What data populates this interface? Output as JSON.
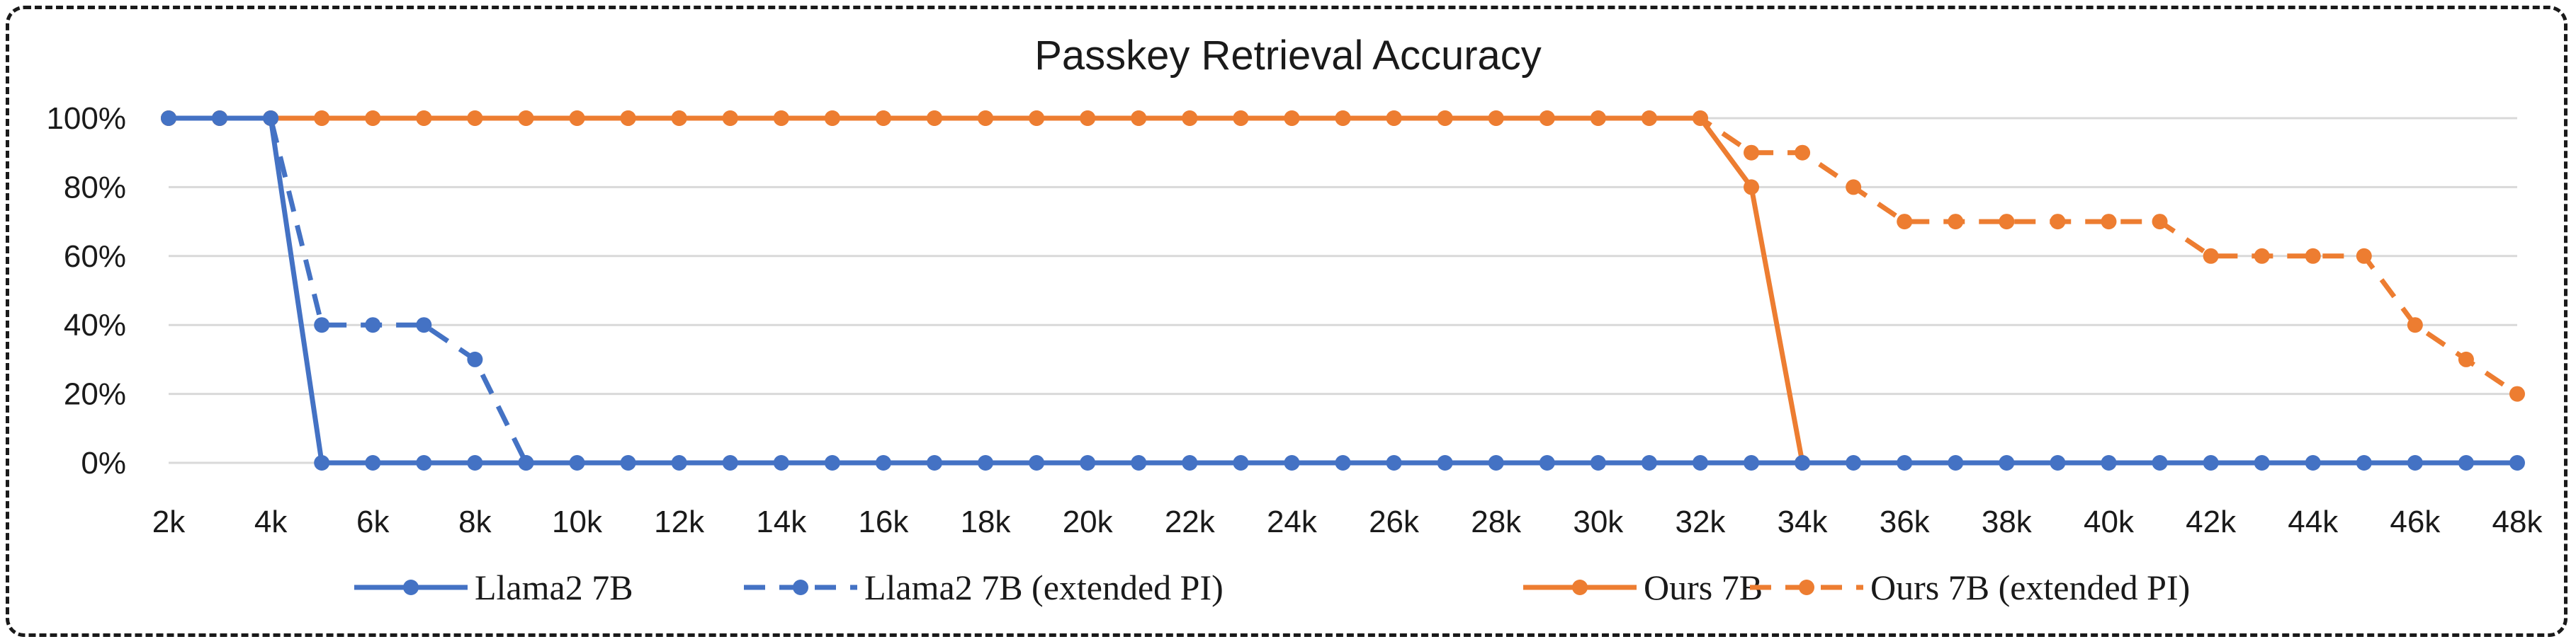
{
  "chart_data": {
    "type": "line",
    "title": "Passkey Retrieval Accuracy",
    "xlabel": "",
    "ylabel": "",
    "x": [
      2,
      3,
      4,
      5,
      6,
      7,
      8,
      9,
      10,
      11,
      12,
      13,
      14,
      15,
      16,
      17,
      18,
      19,
      20,
      21,
      22,
      23,
      24,
      25,
      26,
      27,
      28,
      29,
      30,
      31,
      32,
      33,
      34,
      35,
      36,
      37,
      38,
      39,
      40,
      41,
      42,
      43,
      44,
      45,
      46,
      47,
      48
    ],
    "x_unit_suffix": "k",
    "xlim": [
      2,
      48
    ],
    "x_tick_labels": [
      "2k",
      "4k",
      "6k",
      "8k",
      "10k",
      "12k",
      "14k",
      "16k",
      "18k",
      "20k",
      "22k",
      "24k",
      "26k",
      "28k",
      "30k",
      "32k",
      "34k",
      "36k",
      "38k",
      "40k",
      "42k",
      "44k",
      "46k",
      "48k"
    ],
    "ylim": [
      0,
      100
    ],
    "y_tick_labels": [
      "0%",
      "20%",
      "40%",
      "60%",
      "80%",
      "100%"
    ],
    "y_ticks": [
      0,
      20,
      40,
      60,
      80,
      100
    ],
    "grid": true,
    "legend_position": "bottom",
    "series": [
      {
        "name": "Llama2 7B",
        "color": "#4472c4",
        "dash": false,
        "values": [
          100,
          100,
          100,
          0,
          0,
          0,
          0,
          0,
          0,
          0,
          0,
          0,
          0,
          0,
          0,
          0,
          0,
          0,
          0,
          0,
          0,
          0,
          0,
          0,
          0,
          0,
          0,
          0,
          0,
          0,
          0,
          0,
          0,
          0,
          0,
          0,
          0,
          0,
          0,
          0,
          0,
          0,
          0,
          0,
          0,
          0,
          0
        ]
      },
      {
        "name": "Llama2 7B (extended PI)",
        "color": "#4472c4",
        "dash": true,
        "values": [
          100,
          100,
          100,
          40,
          40,
          40,
          30,
          0,
          null,
          null,
          null,
          null,
          null,
          null,
          null,
          null,
          null,
          null,
          null,
          null,
          null,
          null,
          null,
          null,
          null,
          null,
          null,
          null,
          null,
          null,
          null,
          null,
          null,
          null,
          null,
          null,
          null,
          null,
          null,
          null,
          null,
          null,
          null,
          null,
          null,
          null,
          null
        ]
      },
      {
        "name": "Ours 7B",
        "color": "#ed7d31",
        "dash": false,
        "values": [
          100,
          100,
          100,
          100,
          100,
          100,
          100,
          100,
          100,
          100,
          100,
          100,
          100,
          100,
          100,
          100,
          100,
          100,
          100,
          100,
          100,
          100,
          100,
          100,
          100,
          100,
          100,
          100,
          100,
          100,
          100,
          80,
          0,
          null,
          null,
          null,
          null,
          null,
          null,
          null,
          null,
          null,
          null,
          null,
          null,
          null,
          null
        ]
      },
      {
        "name": "Ours 7B (extended PI)",
        "color": "#ed7d31",
        "dash": true,
        "values": [
          100,
          100,
          100,
          100,
          100,
          100,
          100,
          100,
          100,
          100,
          100,
          100,
          100,
          100,
          100,
          100,
          100,
          100,
          100,
          100,
          100,
          100,
          100,
          100,
          100,
          100,
          100,
          100,
          100,
          100,
          100,
          90,
          90,
          80,
          70,
          70,
          70,
          70,
          70,
          70,
          60,
          60,
          60,
          60,
          40,
          30,
          20
        ]
      }
    ]
  }
}
